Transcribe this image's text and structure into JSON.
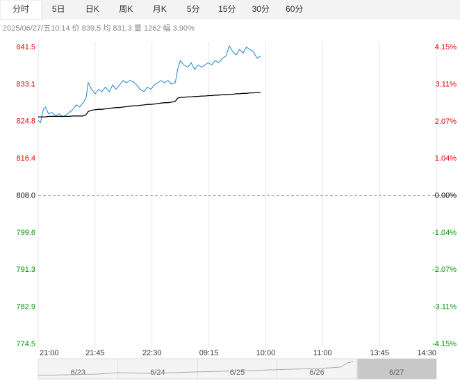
{
  "tabs": [
    "分时",
    "5日",
    "日K",
    "周K",
    "月K",
    "5分",
    "15分",
    "30分",
    "60分"
  ],
  "active_tab": 0,
  "info": "2025/06/27/五10:14  价 839.5  均 831.3  量 1262  幅 3.90%",
  "chart_data": {
    "type": "line",
    "x": [
      0,
      0.04,
      0.09,
      0.13,
      0.18,
      0.24,
      0.31,
      0.37,
      0.43,
      0.49,
      0.55,
      0.61,
      0.67,
      0.73,
      0.79,
      0.84,
      0.88,
      0.94,
      1.0,
      1.06,
      1.12,
      1.18,
      1.25,
      1.31,
      1.37,
      1.43,
      1.49,
      1.55,
      1.61,
      1.67,
      1.73,
      1.79,
      1.86,
      1.92,
      1.98,
      2.04,
      2.1,
      2.16,
      2.22,
      2.28,
      2.34,
      2.41,
      2.45,
      2.5,
      2.56,
      2.63,
      2.69,
      2.75,
      2.81,
      2.87,
      2.93,
      2.99,
      3.05,
      3.11,
      3.17,
      3.24,
      3.3,
      3.36,
      3.42,
      3.48,
      3.54,
      3.6,
      3.66,
      3.72,
      3.78,
      3.85,
      3.91
    ],
    "series": [
      {
        "color": "#1a86c8",
        "values": [
          825.0,
          824.5,
          827.5,
          828.0,
          826.5,
          826.8,
          826.0,
          826.5,
          825.8,
          826.2,
          826.8,
          827.5,
          828.5,
          828.0,
          829.0,
          830.0,
          833.5,
          832.0,
          831.0,
          832.0,
          831.5,
          832.5,
          831.5,
          833.0,
          832.0,
          833.0,
          834.0,
          833.5,
          834.0,
          833.8,
          833.0,
          832.0,
          831.5,
          832.5,
          832.0,
          833.0,
          833.5,
          834.0,
          833.5,
          834.0,
          833.2,
          833.5,
          836.5,
          838.5,
          837.5,
          837.0,
          838.0,
          836.5,
          837.5,
          837.0,
          837.5,
          838.0,
          837.5,
          838.5,
          838.0,
          839.0,
          839.5,
          841.8,
          840.5,
          839.8,
          841.0,
          840.2,
          841.5,
          841.0,
          840.5,
          839.0,
          839.5
        ]
      },
      {
        "color": "#000000",
        "values": [
          825.8,
          825.8,
          825.8,
          825.8,
          825.9,
          825.9,
          825.9,
          825.9,
          825.9,
          825.9,
          825.9,
          826.0,
          826.0,
          826.0,
          826.0,
          826.3,
          827.0,
          827.3,
          827.4,
          827.5,
          827.5,
          827.6,
          827.7,
          827.8,
          827.9,
          827.9,
          828.0,
          828.1,
          828.2,
          828.3,
          828.3,
          828.4,
          828.5,
          828.6,
          828.6,
          828.7,
          828.8,
          828.9,
          829.0,
          829.0,
          829.1,
          829.3,
          830.0,
          830.2,
          830.2,
          830.3,
          830.3,
          830.4,
          830.4,
          830.5,
          830.5,
          830.6,
          830.6,
          830.7,
          830.7,
          830.8,
          830.8,
          830.9,
          830.9,
          831.0,
          831.0,
          831.1,
          831.1,
          831.2,
          831.2,
          831.3,
          831.3
        ]
      }
    ],
    "xlim": [
      0,
      7
    ],
    "xticks": [
      {
        "value": 0,
        "label": "21:00"
      },
      {
        "value": 1,
        "label": "21:45"
      },
      {
        "value": 2,
        "label": "22:30"
      },
      {
        "value": 3,
        "label": "09:15"
      },
      {
        "value": 4,
        "label": "10:00"
      },
      {
        "value": 5,
        "label": "11:00"
      },
      {
        "value": 6,
        "label": "13:45"
      },
      {
        "value": 7,
        "label": "14:30"
      }
    ],
    "ylim": [
      774.5,
      841.5
    ],
    "yticks": [
      841.5,
      833.1,
      824.8,
      816.4,
      {
        "value": 808,
        "label": "808.0"
      },
      799.6,
      791.3,
      782.9,
      774.5
    ],
    "y2lim": [
      -4.15,
      4.15
    ],
    "y2ticks": [
      {
        "value": 4.15,
        "label": "4.15%"
      },
      {
        "value": 3.11,
        "label": "3.11%"
      },
      {
        "value": 2.07,
        "label": "2.07%"
      },
      {
        "value": 1.04,
        "label": "1.04%"
      },
      {
        "value": 0,
        "label": "0.00%"
      },
      {
        "value": -1.04,
        "label": "-1.04%"
      },
      {
        "value": -2.07,
        "label": "-2.07%"
      },
      {
        "value": -3.11,
        "label": "-3.11%"
      },
      {
        "value": -4.15,
        "label": "-4.15%"
      }
    ],
    "grid": true,
    "up_color": "#e60000",
    "down_color": "#009900",
    "flat_color": "#000000"
  },
  "navigator": {
    "dates": [
      "6/23",
      "6/24",
      "6/25",
      "6/26",
      "6/27"
    ],
    "selected": 4
  }
}
